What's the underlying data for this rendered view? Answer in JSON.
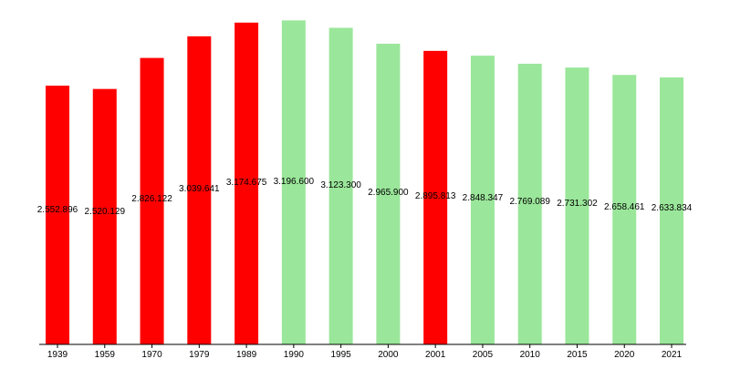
{
  "chart_data": {
    "type": "bar",
    "categories": [
      "1939",
      "1959",
      "1970",
      "1979",
      "1989",
      "1990",
      "1995",
      "2000",
      "2001",
      "2005",
      "2010",
      "2015",
      "2020",
      "2021"
    ],
    "values": [
      2.552896,
      2.520129,
      2.826122,
      3.039641,
      3.174675,
      3.1966,
      3.1233,
      2.9659,
      2.895813,
      2.848347,
      2.769089,
      2.731302,
      2.658461,
      2.633834
    ],
    "labels": [
      "2.552.896",
      "2.520.129",
      "2.826.122",
      "3.039.641",
      "3.174.675",
      "3.196.600",
      "3.123.300",
      "2.965.900",
      "2.895.813",
      "2.848.347",
      "2.769.089",
      "2.731.302",
      "2.658.461",
      "2.633.834"
    ],
    "bar_colors": [
      "#ff0000",
      "#ff0000",
      "#ff0000",
      "#ff0000",
      "#ff0000",
      "#9ae69a",
      "#9ae69a",
      "#9ae69a",
      "#ff0000",
      "#9ae69a",
      "#9ae69a",
      "#9ae69a",
      "#9ae69a",
      "#9ae69a"
    ],
    "ylim": [
      0,
      3.2
    ],
    "grid": false,
    "title": "",
    "xlabel": "",
    "ylabel": ""
  }
}
